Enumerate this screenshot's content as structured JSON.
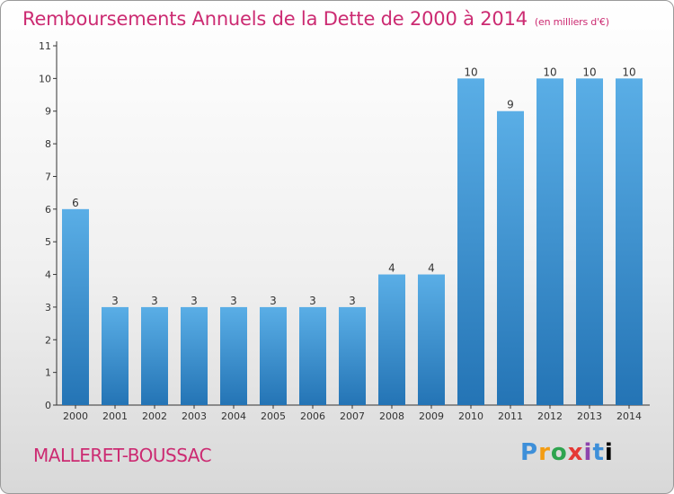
{
  "header": {
    "title": "Remboursements Annuels de la Dette de 2000 à 2014",
    "unit": "(en milliers d'€)"
  },
  "footer": {
    "place": "MALLERET-BOUSSAC",
    "logo": "Proxiti"
  },
  "colors": {
    "bar_light": "#5aaee6",
    "bar_dark": "#2474b5",
    "title": "#cc2b72"
  },
  "chart_data": {
    "type": "bar",
    "categories": [
      "2000",
      "2001",
      "2002",
      "2003",
      "2004",
      "2005",
      "2006",
      "2007",
      "2008",
      "2009",
      "2010",
      "2011",
      "2012",
      "2013",
      "2014"
    ],
    "values": [
      6,
      3,
      3,
      3,
      3,
      3,
      3,
      3,
      4,
      4,
      10,
      9,
      10,
      10,
      10
    ],
    "title": "Remboursements Annuels de la Dette de 2000 à 2014",
    "xlabel": "",
    "ylabel": "",
    "ylim": [
      0,
      11
    ],
    "yticks": [
      0,
      1,
      2,
      3,
      4,
      5,
      6,
      7,
      8,
      9,
      10,
      11
    ],
    "grid": false,
    "legend": "none"
  }
}
